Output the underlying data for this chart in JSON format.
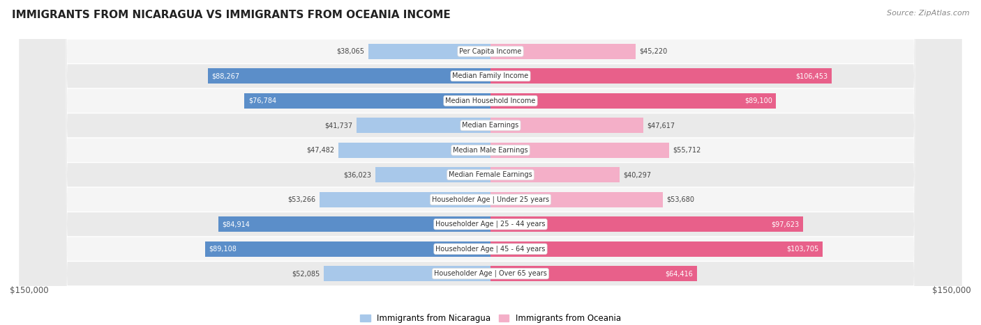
{
  "title": "IMMIGRANTS FROM NICARAGUA VS IMMIGRANTS FROM OCEANIA INCOME",
  "source": "Source: ZipAtlas.com",
  "categories": [
    "Per Capita Income",
    "Median Family Income",
    "Median Household Income",
    "Median Earnings",
    "Median Male Earnings",
    "Median Female Earnings",
    "Householder Age | Under 25 years",
    "Householder Age | 25 - 44 years",
    "Householder Age | 45 - 64 years",
    "Householder Age | Over 65 years"
  ],
  "nicaragua_values": [
    38065,
    88267,
    76784,
    41737,
    47482,
    36023,
    53266,
    84914,
    89108,
    52085
  ],
  "oceania_values": [
    45220,
    106453,
    89100,
    47617,
    55712,
    40297,
    53680,
    97623,
    103705,
    64416
  ],
  "nicaragua_labels": [
    "$38,065",
    "$88,267",
    "$76,784",
    "$41,737",
    "$47,482",
    "$36,023",
    "$53,266",
    "$84,914",
    "$89,108",
    "$52,085"
  ],
  "oceania_labels": [
    "$45,220",
    "$106,453",
    "$89,100",
    "$47,617",
    "$55,712",
    "$40,297",
    "$53,680",
    "$97,623",
    "$103,705",
    "$64,416"
  ],
  "nicaragua_color_dark": "#5b8ec9",
  "nicaragua_color_light": "#a8c8ea",
  "oceania_color_dark": "#e8608a",
  "oceania_color_light": "#f4afc8",
  "max_value": 150000,
  "x_label_left": "$150,000",
  "x_label_right": "$150,000",
  "legend_nicaragua": "Immigrants from Nicaragua",
  "legend_oceania": "Immigrants from Oceania",
  "bar_height": 0.62,
  "background_color": "#ffffff",
  "row_bg_even": "#f2f2f2",
  "row_bg_odd": "#e8e8e8",
  "nic_dark_threshold": 60000,
  "oce_dark_threshold": 60000
}
